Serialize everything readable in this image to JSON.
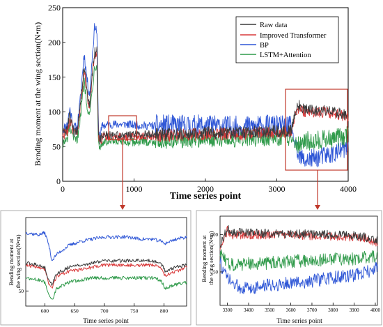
{
  "colors": {
    "raw": "#3b3b3b",
    "improved_transformer": "#d9393a",
    "bp": "#2e56d6",
    "lstm_attention": "#2f9a4a",
    "zoom_box": "#c0392b"
  },
  "chart_data": [
    {
      "type": "line",
      "xlabel": "Time series point",
      "ylabel": "Bending moment at the wing section(N•m)",
      "xlim": [
        0,
        4000
      ],
      "ylim": [
        0,
        250
      ],
      "xticks": [
        0,
        1000,
        2000,
        3000,
        4000
      ],
      "yticks": [
        0,
        50,
        100,
        150,
        200,
        250
      ],
      "legend_position": "top-right",
      "series": [
        {
          "name": "Raw data",
          "color": "raw"
        },
        {
          "name": "Improved Transformer",
          "color": "improved_transformer"
        },
        {
          "name": "BP",
          "color": "bp"
        },
        {
          "name": "LSTM+Attention",
          "color": "lstm_attention"
        }
      ],
      "profile": {
        "x": [
          0,
          60,
          100,
          150,
          200,
          250,
          300,
          350,
          380,
          410,
          450,
          480,
          500,
          520,
          560,
          700,
          900,
          1100,
          1500,
          2000,
          2500,
          2900,
          3200,
          3260,
          3300,
          3400,
          3600,
          3800,
          4000
        ],
        "raw": [
          70,
          72,
          95,
          72,
          70,
          110,
          165,
          125,
          110,
          150,
          185,
          190,
          70,
          58,
          66,
          66,
          66,
          67,
          68,
          70,
          70,
          72,
          72,
          100,
          110,
          103,
          102,
          100,
          95
        ],
        "improved_transformer": [
          68,
          70,
          90,
          70,
          68,
          105,
          160,
          120,
          108,
          148,
          182,
          185,
          68,
          56,
          64,
          64,
          64,
          65,
          66,
          68,
          68,
          70,
          70,
          96,
          104,
          100,
          100,
          98,
          93
        ],
        "bp": [
          75,
          80,
          105,
          78,
          76,
          120,
          185,
          140,
          125,
          175,
          225,
          215,
          78,
          65,
          80,
          82,
          82,
          80,
          80,
          80,
          78,
          80,
          78,
          50,
          35,
          30,
          35,
          40,
          48
        ],
        "lstm_attention": [
          55,
          58,
          80,
          60,
          58,
          95,
          145,
          105,
          95,
          130,
          165,
          170,
          55,
          48,
          56,
          56,
          56,
          57,
          58,
          60,
          60,
          62,
          62,
          58,
          55,
          58,
          60,
          62,
          65
        ]
      },
      "zoom_regions": [
        {
          "x": [
            570,
            850
          ],
          "y": [
            45,
            90
          ]
        },
        {
          "x": [
            3270,
            4010
          ],
          "y": [
            5,
            125
          ]
        }
      ]
    },
    {
      "type": "line",
      "xlabel": "Time series point",
      "ylabel": "Bending moment at the wing section(N•m)",
      "xlim": [
        568,
        838
      ],
      "ylim": [
        43,
        84
      ],
      "xticks": [
        600,
        650,
        700,
        750,
        800
      ],
      "yticks": [
        50
      ],
      "profile": {
        "x": [
          568,
          590,
          600,
          606,
          612,
          620,
          640,
          660,
          680,
          700,
          720,
          740,
          760,
          780,
          795,
          802,
          810,
          820,
          838
        ],
        "raw": [
          63,
          62,
          61,
          55,
          53,
          58,
          61,
          62,
          63,
          64,
          64,
          64,
          64,
          64,
          63,
          59,
          60,
          61,
          62
        ],
        "improved_transformer": [
          62,
          61,
          60,
          54,
          51,
          57,
          59,
          60,
          61,
          62,
          62,
          62,
          62,
          62,
          61,
          57,
          58,
          59,
          61
        ],
        "bp": [
          77,
          76,
          77,
          72,
          64,
          67,
          71,
          73,
          74,
          75,
          75,
          75,
          74,
          74,
          73,
          72,
          73,
          74,
          75
        ],
        "lstm_attention": [
          56,
          55,
          54,
          49,
          46,
          51,
          54,
          55,
          56,
          56,
          56,
          56,
          56,
          56,
          55,
          51,
          52,
          53,
          54
        ]
      }
    },
    {
      "type": "line",
      "xlabel": "Time series point",
      "ylabel": "Bending moment at the wing section(N•m)",
      "xlim": [
        3265,
        4010
      ],
      "ylim": [
        5,
        125
      ],
      "xticks": [
        3300,
        3400,
        3500,
        3600,
        3700,
        3800,
        3900,
        4000
      ],
      "yticks": [
        50,
        100
      ],
      "profile": {
        "x": [
          3265,
          3280,
          3300,
          3320,
          3350,
          3400,
          3500,
          3600,
          3700,
          3800,
          3900,
          3950,
          3980,
          4000
        ],
        "raw": [
          85,
          95,
          110,
          103,
          104,
          102,
          102,
          101,
          101,
          100,
          99,
          97,
          95,
          92
        ],
        "improved_transformer": [
          82,
          92,
          106,
          100,
          100,
          100,
          100,
          99,
          99,
          98,
          97,
          95,
          93,
          90
        ],
        "bp": [
          65,
          50,
          42,
          35,
          30,
          28,
          32,
          35,
          38,
          42,
          46,
          50,
          52,
          55
        ],
        "lstm_attention": [
          75,
          68,
          62,
          60,
          60,
          61,
          62,
          64,
          66,
          67,
          68,
          69,
          70,
          70
        ]
      }
    }
  ]
}
